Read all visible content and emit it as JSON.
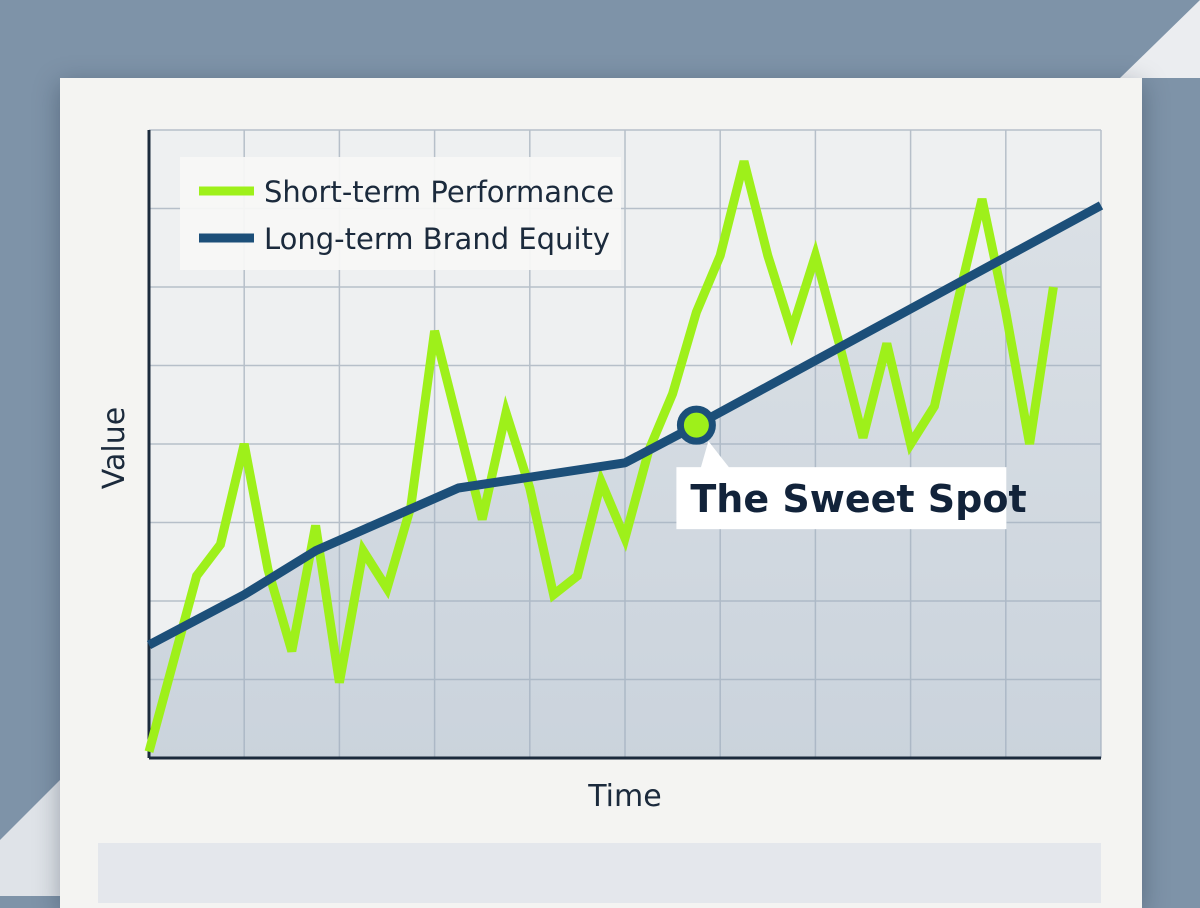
{
  "chart_data": {
    "type": "line",
    "title": "",
    "xlabel": "Time",
    "ylabel": "Value",
    "xlim": [
      0,
      40
    ],
    "ylim": [
      0,
      100
    ],
    "grid": true,
    "legend_position": "top-left",
    "series": [
      {
        "name": "Short-term Performance",
        "color": "#9ef01a",
        "points": [
          [
            0,
            1
          ],
          [
            1,
            15
          ],
          [
            2,
            29
          ],
          [
            3,
            34
          ],
          [
            4,
            50
          ],
          [
            5,
            30
          ],
          [
            6,
            17
          ],
          [
            7,
            37
          ],
          [
            8,
            12
          ],
          [
            9,
            33
          ],
          [
            10,
            27
          ],
          [
            11,
            40
          ],
          [
            12,
            68
          ],
          [
            13,
            53
          ],
          [
            14,
            38
          ],
          [
            15,
            55
          ],
          [
            16,
            43
          ],
          [
            17,
            26
          ],
          [
            18,
            29
          ],
          [
            19,
            44
          ],
          [
            20,
            35
          ],
          [
            21,
            49
          ],
          [
            22,
            58
          ],
          [
            23,
            71
          ],
          [
            24,
            80
          ],
          [
            25,
            95
          ],
          [
            26,
            80
          ],
          [
            27,
            68
          ],
          [
            28,
            80
          ],
          [
            29,
            66
          ],
          [
            30,
            51
          ],
          [
            31,
            66
          ],
          [
            32,
            50
          ],
          [
            33,
            56
          ],
          [
            34,
            73
          ],
          [
            35,
            89
          ],
          [
            36,
            71
          ],
          [
            37,
            50
          ],
          [
            38,
            75
          ]
        ]
      },
      {
        "name": "Long-term Brand Equity",
        "color": "#1c4f79",
        "points": [
          [
            0,
            18
          ],
          [
            4,
            26
          ],
          [
            7,
            33
          ],
          [
            13,
            43
          ],
          [
            20,
            47
          ],
          [
            23,
            53
          ],
          [
            40,
            88
          ]
        ]
      }
    ],
    "annotations": [
      {
        "text": "The Sweet Spot",
        "x": 23,
        "y": 53
      }
    ]
  }
}
